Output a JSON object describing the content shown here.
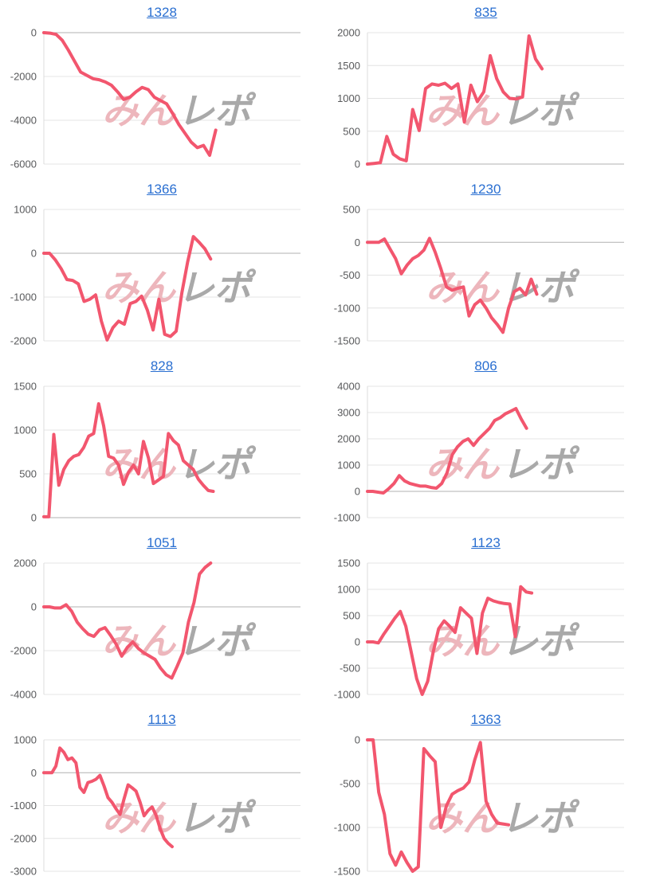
{
  "page": {
    "background": "#ffffff"
  },
  "style": {
    "line_color": "#f2566e",
    "grid_color": "#e4e4e4",
    "baseline_color": "#b0b0b0",
    "axis_color": "#dcdcdc",
    "tick_color": "#58595b",
    "title_color": "#2a6fd1",
    "watermark_pink_color": "#edb6bc",
    "watermark_gray_color": "#a9a9a9"
  },
  "watermark": {
    "pink_text": "みん",
    "gray_text": "レポ"
  },
  "chart_data": [
    {
      "type": "line",
      "title": "1328",
      "xlabel": "",
      "ylabel": "",
      "ylim": [
        -6000,
        0
      ],
      "yticks": [
        0,
        -2000,
        -4000,
        -6000
      ],
      "grid": true,
      "legend": "none",
      "x_end_fraction": 0.67,
      "values": [
        0,
        -20,
        -80,
        -350,
        -800,
        -1300,
        -1800,
        -1950,
        -2100,
        -2150,
        -2250,
        -2400,
        -2700,
        -3050,
        -2950,
        -2700,
        -2500,
        -2600,
        -2950,
        -3100,
        -3250,
        -3700,
        -4200,
        -4600,
        -5000,
        -5250,
        -5150,
        -5600,
        -4450
      ]
    },
    {
      "type": "line",
      "title": "835",
      "xlabel": "",
      "ylabel": "",
      "ylim": [
        0,
        2000
      ],
      "yticks": [
        2000,
        1500,
        1000,
        500,
        0
      ],
      "grid": true,
      "legend": "none",
      "x_end_fraction": 0.68,
      "values": [
        0,
        10,
        20,
        420,
        150,
        80,
        50,
        830,
        510,
        1150,
        1220,
        1200,
        1230,
        1150,
        1220,
        640,
        1200,
        950,
        1100,
        1650,
        1300,
        1100,
        1000,
        990,
        1020,
        1950,
        1600,
        1450
      ]
    },
    {
      "type": "line",
      "title": "1366",
      "xlabel": "",
      "ylabel": "",
      "ylim": [
        -2000,
        1000
      ],
      "yticks": [
        1000,
        0,
        -1000,
        -2000
      ],
      "grid": true,
      "legend": "none",
      "x_end_fraction": 0.65,
      "values": [
        0,
        0,
        -150,
        -350,
        -600,
        -620,
        -700,
        -1100,
        -1050,
        -950,
        -1550,
        -1980,
        -1700,
        -1550,
        -1620,
        -1150,
        -1100,
        -980,
        -1300,
        -1750,
        -1050,
        -1850,
        -1900,
        -1780,
        -900,
        -200,
        380,
        250,
        100,
        -130
      ]
    },
    {
      "type": "line",
      "title": "1230",
      "xlabel": "",
      "ylabel": "",
      "ylim": [
        -1500,
        500
      ],
      "yticks": [
        500,
        0,
        -500,
        -1000,
        -1500
      ],
      "grid": true,
      "legend": "none",
      "x_end_fraction": 0.66,
      "values": [
        0,
        0,
        0,
        50,
        -100,
        -250,
        -480,
        -350,
        -250,
        -200,
        -120,
        60,
        -150,
        -400,
        -680,
        -730,
        -700,
        -680,
        -1120,
        -950,
        -880,
        -1000,
        -1150,
        -1250,
        -1370,
        -1000,
        -750,
        -700,
        -800,
        -560,
        -790
      ]
    },
    {
      "type": "line",
      "title": "828",
      "xlabel": "",
      "ylabel": "",
      "ylim": [
        0,
        1500
      ],
      "yticks": [
        1500,
        1000,
        500,
        0
      ],
      "grid": true,
      "legend": "none",
      "x_end_fraction": 0.66,
      "values": [
        10,
        10,
        950,
        370,
        550,
        650,
        700,
        720,
        800,
        930,
        960,
        1300,
        1050,
        700,
        680,
        600,
        380,
        520,
        600,
        500,
        870,
        680,
        390,
        430,
        470,
        960,
        880,
        830,
        650,
        600,
        550,
        440,
        370,
        310,
        300
      ]
    },
    {
      "type": "line",
      "title": "806",
      "xlabel": "",
      "ylabel": "",
      "ylim": [
        -1000,
        4000
      ],
      "yticks": [
        4000,
        3000,
        2000,
        1000,
        0,
        -1000
      ],
      "grid": true,
      "legend": "none",
      "x_end_fraction": 0.62,
      "values": [
        0,
        0,
        -30,
        -60,
        100,
        300,
        600,
        400,
        300,
        250,
        200,
        200,
        150,
        120,
        300,
        700,
        1400,
        1700,
        1900,
        2000,
        1750,
        2000,
        2200,
        2400,
        2700,
        2800,
        2950,
        3050,
        3150,
        2750,
        2400
      ]
    },
    {
      "type": "line",
      "title": "1051",
      "xlabel": "",
      "ylabel": "",
      "ylim": [
        -4000,
        2000
      ],
      "yticks": [
        2000,
        0,
        -2000,
        -4000
      ],
      "grid": true,
      "legend": "none",
      "x_end_fraction": 0.65,
      "values": [
        0,
        0,
        -50,
        -50,
        100,
        -200,
        -700,
        -1000,
        -1250,
        -1350,
        -1050,
        -950,
        -1300,
        -1700,
        -2250,
        -1850,
        -1600,
        -1900,
        -2100,
        -2250,
        -2400,
        -2800,
        -3100,
        -3250,
        -2700,
        -2100,
        -700,
        200,
        1500,
        1800,
        2000
      ]
    },
    {
      "type": "line",
      "title": "1123",
      "xlabel": "",
      "ylabel": "",
      "ylim": [
        -1000,
        1500
      ],
      "yticks": [
        1500,
        1000,
        500,
        0,
        -500,
        -1000
      ],
      "grid": true,
      "legend": "none",
      "x_end_fraction": 0.64,
      "values": [
        0,
        0,
        -20,
        150,
        300,
        450,
        580,
        300,
        -200,
        -700,
        -1000,
        -750,
        -200,
        250,
        400,
        300,
        180,
        650,
        550,
        450,
        -220,
        550,
        830,
        780,
        750,
        730,
        720,
        100,
        1050,
        950,
        930
      ]
    },
    {
      "type": "line",
      "title": "1113",
      "xlabel": "",
      "ylabel": "",
      "ylim": [
        -3000,
        1000
      ],
      "yticks": [
        1000,
        0,
        -1000,
        -2000,
        -3000
      ],
      "grid": true,
      "legend": "none",
      "x_end_fraction": 0.5,
      "values": [
        0,
        0,
        0,
        200,
        750,
        620,
        400,
        450,
        300,
        -450,
        -600,
        -300,
        -260,
        -200,
        -80,
        -400,
        -760,
        -900,
        -1100,
        -1270,
        -800,
        -370,
        -460,
        -560,
        -900,
        -1310,
        -1150,
        -1040,
        -1300,
        -1700,
        -2000,
        -2150,
        -2250
      ]
    },
    {
      "type": "line",
      "title": "1363",
      "xlabel": "",
      "ylabel": "",
      "ylim": [
        -1500,
        0
      ],
      "yticks": [
        0,
        -500,
        -1000,
        -1500
      ],
      "grid": true,
      "legend": "none",
      "x_end_fraction": 0.55,
      "values": [
        0,
        0,
        -600,
        -850,
        -1300,
        -1430,
        -1280,
        -1400,
        -1500,
        -1450,
        -100,
        -180,
        -250,
        -1000,
        -750,
        -620,
        -580,
        -550,
        -480,
        -230,
        -30,
        -700,
        -850,
        -950,
        -960,
        -970
      ]
    }
  ]
}
